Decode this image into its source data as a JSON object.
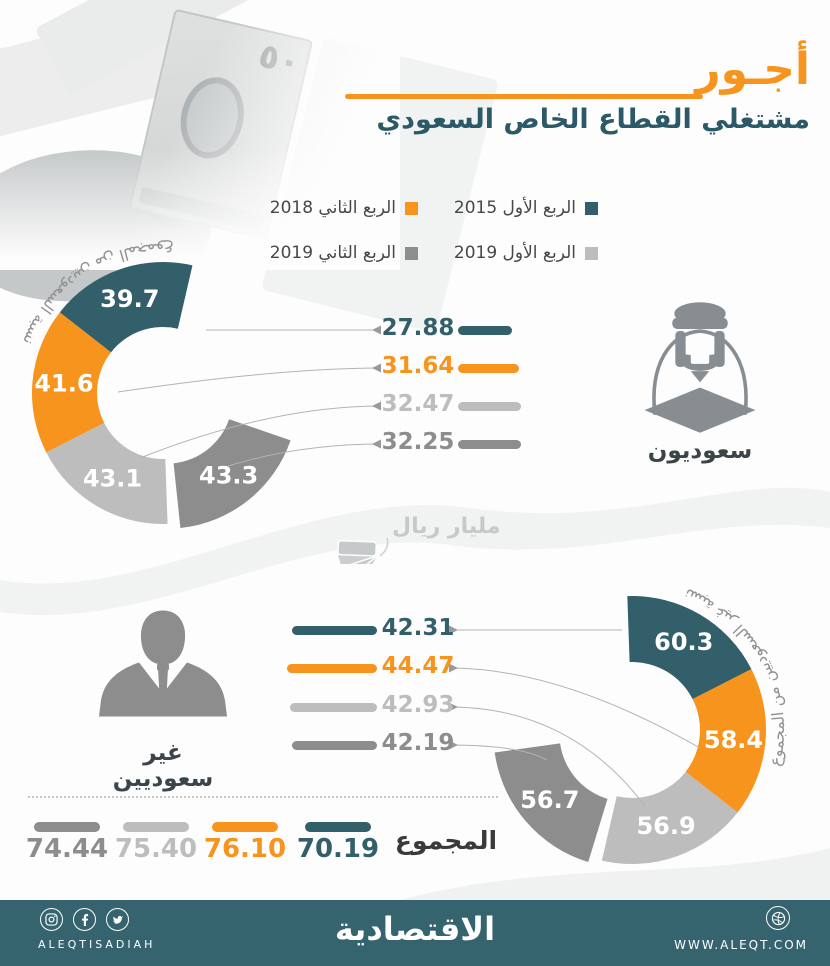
{
  "header": {
    "title": "أجـور",
    "subtitle": "مشتغلي القطاع الخاص السعودي"
  },
  "legend": {
    "items": [
      {
        "label": "الربع الأول 2015",
        "color": "#335f6b"
      },
      {
        "label": "الربع الثاني 2018",
        "color": "#f7941e"
      },
      {
        "label": "الربع الأول 2019",
        "color": "#bdbdbd"
      },
      {
        "label": "الربع الثاني 2019",
        "color": "#8d8d8d"
      }
    ]
  },
  "colors": {
    "series": [
      "#335f6b",
      "#f7941e",
      "#bdbdbd",
      "#8d8d8d"
    ],
    "accent_orange": "#f7941e",
    "title_teal": "#2c5968",
    "footer_bg": "#35646e",
    "muted_text": "#8f9396",
    "leader_line": "#b3b3b3",
    "dark_text": "#3b4449"
  },
  "unit_note": "مليار ريال",
  "saudis": {
    "group_label": "سعوديون",
    "donut_title": "نسبة السعوديين من المجموع",
    "share_display": [
      "39.7",
      "41.6",
      "43.1",
      "43.3"
    ],
    "wage_display": [
      "27.88",
      "31.64",
      "32.47",
      "32.25"
    ]
  },
  "non_saudis": {
    "group_label": "غير سعوديين",
    "donut_title": "نسبة غير السعوديين من المجموع",
    "share_display": [
      "60.3",
      "58.4",
      "56.9",
      "56.7"
    ],
    "wage_display": [
      "42.31",
      "44.47",
      "42.93",
      "42.19"
    ]
  },
  "totals": {
    "label": "المجموع",
    "display": [
      "70.19",
      "76.10",
      "75.40",
      "74.44"
    ]
  },
  "footer": {
    "brand": "الاقتصادية",
    "handle": "ALEQTISADIAH",
    "url": "WWW.ALEQT.COM"
  },
  "chart_data": [
    {
      "type": "pie",
      "subtype": "donut",
      "group": "سعوديون",
      "title": "نسبة السعوديين من المجموع",
      "unit": "%",
      "categories": [
        "الربع الأول 2015",
        "الربع الثاني 2018",
        "الربع الأول 2019",
        "الربع الثاني 2019"
      ],
      "values": [
        39.7,
        41.6,
        43.1,
        43.3
      ]
    },
    {
      "type": "bar",
      "group": "سعوديون",
      "unit": "مليار ريال",
      "categories": [
        "الربع الأول 2015",
        "الربع الثاني 2018",
        "الربع الأول 2019",
        "الربع الثاني 2019"
      ],
      "values": [
        27.88,
        31.64,
        32.47,
        32.25
      ]
    },
    {
      "type": "pie",
      "subtype": "donut",
      "group": "غير سعوديين",
      "title": "نسبة غير السعوديين من المجموع",
      "unit": "%",
      "categories": [
        "الربع الأول 2015",
        "الربع الثاني 2018",
        "الربع الأول 2019",
        "الربع الثاني 2019"
      ],
      "values": [
        60.3,
        58.4,
        56.9,
        56.7
      ]
    },
    {
      "type": "bar",
      "group": "غير سعوديين",
      "unit": "مليار ريال",
      "categories": [
        "الربع الأول 2015",
        "الربع الثاني 2018",
        "الربع الأول 2019",
        "الربع الثاني 2019"
      ],
      "values": [
        42.31,
        44.47,
        42.93,
        42.19
      ]
    },
    {
      "type": "bar",
      "group": "المجموع",
      "unit": "مليار ريال",
      "categories": [
        "الربع الأول 2015",
        "الربع الثاني 2018",
        "الربع الأول 2019",
        "الربع الثاني 2019"
      ],
      "values": [
        70.19,
        76.1,
        75.4,
        74.44
      ]
    }
  ]
}
